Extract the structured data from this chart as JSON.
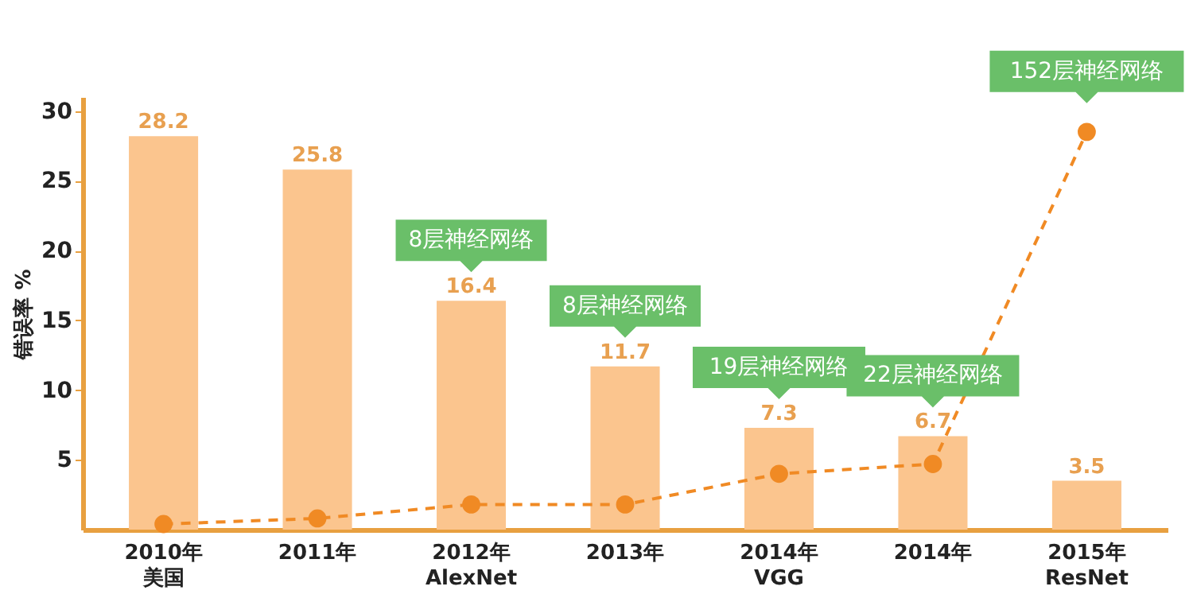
{
  "chart_data": {
    "type": "bar",
    "ylabel": "错误率 %",
    "categories": [
      "2010年美国",
      "2011年",
      "2012年AlexNet",
      "2013年",
      "2014年VGG",
      "2014年",
      "2015年ResNet"
    ],
    "series": [
      {
        "color": "#fbc58e",
        "values": [
          28.2,
          25.8,
          16.4,
          11.7,
          7.3,
          6.7,
          3.5
        ],
        "value_labels": [
          "28.2",
          "25.8",
          "16.4",
          "11.7",
          "7.3",
          "6.7",
          "3.5"
        ]
      },
      {
        "type": "line",
        "color": "#f08a24",
        "values": [
          0.4,
          0.8,
          1.8,
          1.8,
          4.0,
          4.7,
          28.5
        ],
        "line_style": "dashed",
        "marker": "circle"
      }
    ],
    "annotations": [
      {
        "text": "8层神经网络",
        "x": "2012年AlexNet",
        "y": 16.4
      },
      {
        "text": "8层神经网络",
        "x": "2013年",
        "y": 11.7
      },
      {
        "text": "19层神经网络",
        "x": "2014年VGG",
        "y": 7.3
      },
      {
        "text": "22层神经网络",
        "x": "2014年",
        "y": 6.7
      },
      {
        "text": "152层神经网络",
        "x": "2015年ResNet",
        "y": 28.5
      }
    ],
    "ylim": [
      0,
      31
    ],
    "yticks": [
      5,
      10,
      15,
      20,
      25,
      30
    ],
    "grid": false
  }
}
